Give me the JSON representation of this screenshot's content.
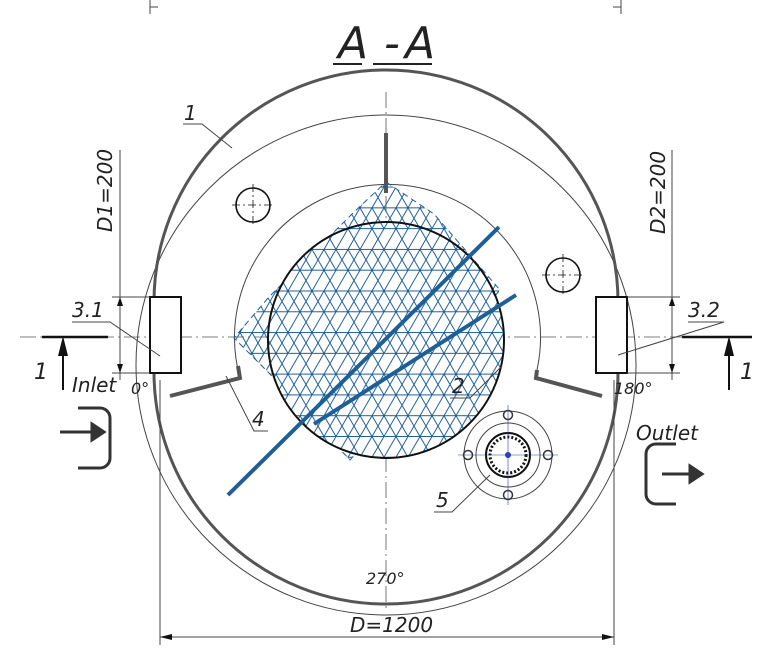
{
  "section": {
    "title_left": "A",
    "title_dash": "-",
    "title_right": "A"
  },
  "callouts": {
    "body": "1",
    "screen": "2",
    "inlet_pipe": "3.1",
    "outlet_pipe": "3.2",
    "partition": "4",
    "hatch": "5"
  },
  "section_marks": {
    "left": "1",
    "right": "1"
  },
  "dimensions": {
    "inlet_diameter": "D1=200",
    "outlet_diameter": "D2=200",
    "outer_diameter": "D=1200"
  },
  "angles": {
    "inlet": "0°",
    "outlet": "180°",
    "bottom": "270°"
  },
  "flow": {
    "inlet": "Inlet",
    "outlet": "Outlet"
  },
  "colors": {
    "mesh": "#1f5f96",
    "hatch_center": "#2040c0",
    "lines": "#444444"
  }
}
